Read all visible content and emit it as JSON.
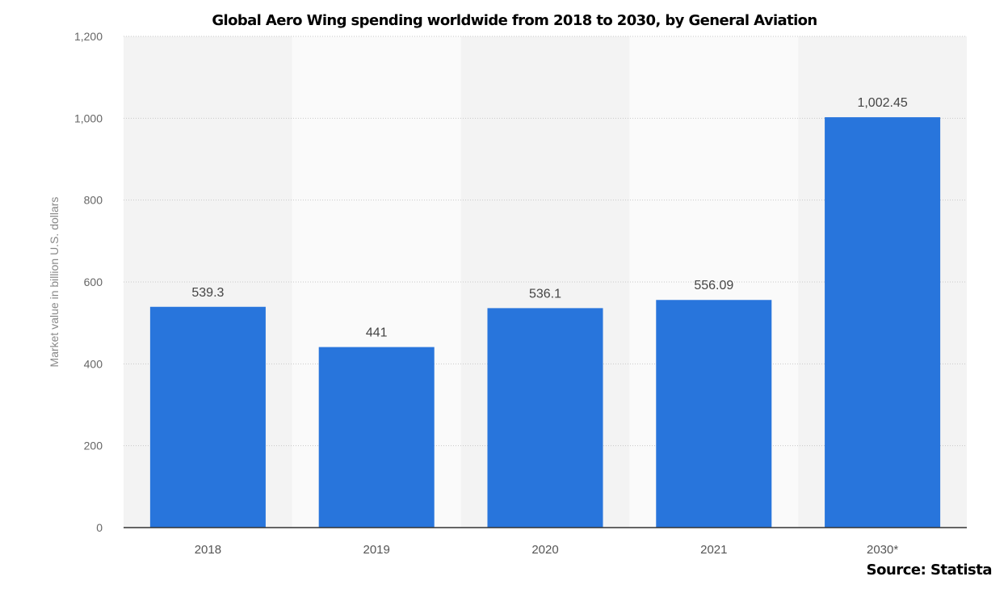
{
  "chart_data": {
    "type": "bar",
    "title": "Global Aero Wing spending worldwide from 2018 to 2030, by General Aviation",
    "xlabel": "",
    "ylabel": "Market value in billion U.S. dollars",
    "categories": [
      "2018",
      "2019",
      "2020",
      "2021",
      "2030*"
    ],
    "values": [
      539.3,
      441,
      536.1,
      556.09,
      1002.45
    ],
    "value_labels": [
      "539.3",
      "441",
      "536.1",
      "556.09",
      "1,002.45"
    ],
    "ylim": [
      0,
      1200
    ],
    "yticks": [
      0,
      200,
      400,
      600,
      800,
      1000,
      1200
    ],
    "ytick_labels": [
      "0",
      "200",
      "400",
      "600",
      "800",
      "1,000",
      "1,200"
    ],
    "grid": true,
    "bar_color": "#2875dc",
    "source": "Source: Statista"
  }
}
